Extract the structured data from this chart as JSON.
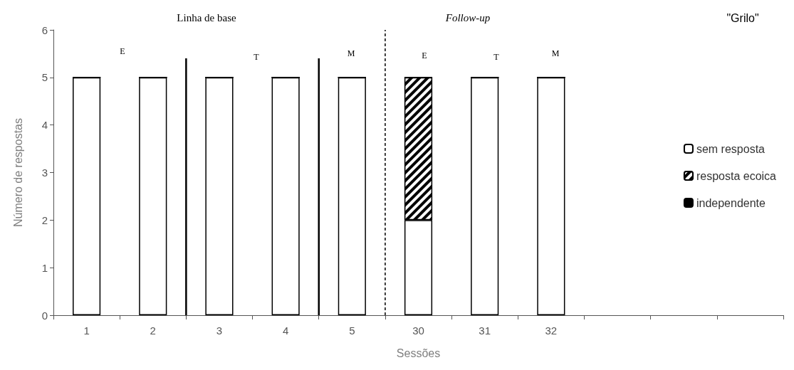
{
  "chart_data": {
    "type": "bar",
    "stacked": true,
    "xlabel": "Sessões",
    "ylabel": "Número de respostas",
    "categories": [
      "1",
      "2",
      "3",
      "4",
      "5",
      "30",
      "31",
      "32",
      null,
      null,
      null
    ],
    "series": [
      {
        "name": "sem resposta",
        "color": "#ffffff",
        "values": [
          5,
          5,
          5,
          5,
          5,
          2,
          5,
          5,
          null,
          null,
          null
        ]
      },
      {
        "name": "resposta ecoica",
        "color": "#000000",
        "values": [
          0,
          0,
          0,
          0,
          0,
          3,
          0,
          0,
          null,
          null,
          null
        ]
      },
      {
        "name": "independente",
        "color": "#000000",
        "values": [
          0,
          0,
          0,
          0,
          0,
          0,
          0,
          0,
          null,
          null,
          null
        ]
      }
    ],
    "ylim": [
      0,
      6
    ],
    "yticks": [
      0,
      1,
      2,
      3,
      4,
      5,
      6
    ],
    "grid": false,
    "legend": "right",
    "annotations": [
      "Linha de base",
      "Follow-up",
      "\"Grilo\"",
      "E",
      "T",
      "M",
      "E",
      "T",
      "M"
    ]
  }
}
